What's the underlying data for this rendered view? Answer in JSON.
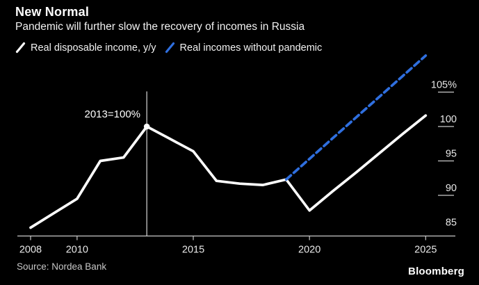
{
  "header": {
    "title": "New Normal",
    "subtitle": "Pandemic will further slow the recovery of incomes in Russia"
  },
  "legend": {
    "items": [
      {
        "label": "Real disposable income, y/y",
        "color": "#ffffff",
        "style": "solid"
      },
      {
        "label": "Real incomes without pandemic",
        "color": "#2f6fdf",
        "style": "dashed"
      }
    ]
  },
  "footer": {
    "source": "Source: Nordea Bank",
    "brand": "Bloomberg"
  },
  "colors": {
    "background": "#000000",
    "line_actual": "#ffffff",
    "line_projection": "#2f6fdf",
    "axis": "#c9c9c9",
    "tick_label": "#e8e8e8",
    "annotation_line": "#d9d9d9",
    "marker": "#ffffff"
  },
  "chart_data": {
    "type": "line",
    "title": "New Normal",
    "subtitle": "Pandemic will further slow the recovery of incomes in Russia",
    "grid": false,
    "legend_position": "top-left",
    "y_axis_side": "right",
    "xlim": [
      2007,
      2026
    ],
    "ylim": [
      84,
      111
    ],
    "x_ticks": [
      2008,
      2010,
      2015,
      2020,
      2025
    ],
    "y_ticks": [
      {
        "value": 105,
        "label": "105%",
        "line": true
      },
      {
        "value": 100,
        "label": "100",
        "line": true
      },
      {
        "value": 95,
        "label": "95",
        "line": true
      },
      {
        "value": 90,
        "label": "90",
        "line": true
      },
      {
        "value": 85,
        "label": "85",
        "line": false
      }
    ],
    "annotation": {
      "text": "2013=100%",
      "x": 2013,
      "y": 100,
      "marker": true,
      "vline_top_value": 105.1
    },
    "series": [
      {
        "name": "Real disposable income, y/y",
        "color": "#ffffff",
        "style": "solid",
        "points": [
          [
            2008,
            85.3
          ],
          [
            2009,
            87.4
          ],
          [
            2010,
            89.5
          ],
          [
            2011,
            95.0
          ],
          [
            2012,
            95.5
          ],
          [
            2013,
            100.0
          ],
          [
            2014,
            98.2
          ],
          [
            2015,
            96.4
          ],
          [
            2016,
            92.1
          ],
          [
            2017,
            91.7
          ],
          [
            2018,
            91.5
          ],
          [
            2019,
            92.3
          ],
          [
            2020,
            87.8
          ],
          [
            2021,
            90.6
          ],
          [
            2022,
            93.3
          ],
          [
            2023,
            96.1
          ],
          [
            2024,
            98.9
          ],
          [
            2025,
            101.6
          ]
        ]
      },
      {
        "name": "Real incomes without pandemic",
        "color": "#2f6fdf",
        "style": "dashed",
        "points": [
          [
            2019,
            92.3
          ],
          [
            2020,
            95.3
          ],
          [
            2021,
            98.3
          ],
          [
            2022,
            101.3
          ],
          [
            2023,
            104.3
          ],
          [
            2024,
            107.3
          ],
          [
            2025,
            110.3
          ]
        ]
      }
    ]
  }
}
